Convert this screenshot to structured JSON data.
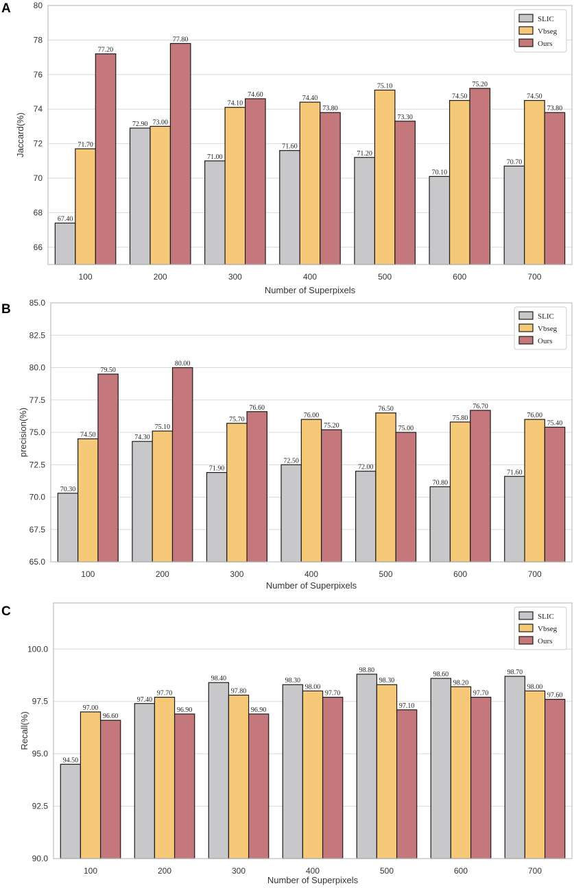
{
  "chart_data": [
    {
      "type": "bar",
      "panel": "A",
      "title": "",
      "xlabel": "Number of Superpixels",
      "ylabel": "Jaccard(%)",
      "ylim": [
        65,
        80
      ],
      "yticks": [
        66,
        68,
        70,
        72,
        74,
        76,
        78,
        80
      ],
      "ytick_labels": [
        "66",
        "68",
        "70",
        "72",
        "74",
        "76",
        "78",
        "80"
      ],
      "categories": [
        "100",
        "200",
        "300",
        "400",
        "500",
        "600",
        "700"
      ],
      "series": [
        {
          "name": "SLIC",
          "color": "#c8c8ca",
          "values": [
            67.4,
            72.9,
            71.0,
            71.6,
            71.2,
            70.1,
            70.7
          ],
          "labels": [
            "67.40",
            "72.90",
            "71.00",
            "71.60",
            "71.20",
            "70.10",
            "70.70"
          ]
        },
        {
          "name": "Vbseg",
          "color": "#f5c977",
          "values": [
            71.7,
            73.0,
            74.1,
            74.4,
            75.1,
            74.5,
            74.5
          ],
          "labels": [
            "71.70",
            "73.00",
            "74.10",
            "74.40",
            "75.10",
            "74.50",
            "74.50"
          ]
        },
        {
          "name": "Ours",
          "color": "#c5787b",
          "values": [
            77.2,
            77.8,
            74.6,
            73.8,
            73.3,
            75.2,
            73.8
          ],
          "labels": [
            "77.20",
            "77.80",
            "74.60",
            "73.80",
            "73.30",
            "75.20",
            "73.80"
          ]
        }
      ],
      "legend": "top-right",
      "grid": true
    },
    {
      "type": "bar",
      "panel": "B",
      "title": "",
      "xlabel": "Number of Superpixels",
      "ylabel": "precision(%)",
      "ylim": [
        65,
        85
      ],
      "yticks": [
        65,
        67.5,
        70,
        72.5,
        75,
        77.5,
        80,
        82.5,
        85
      ],
      "ytick_labels": [
        "65.0",
        "67.5",
        "70.0",
        "72.5",
        "75.0",
        "77.5",
        "80.0",
        "82.5",
        "85.0"
      ],
      "categories": [
        "100",
        "200",
        "300",
        "400",
        "500",
        "600",
        "700"
      ],
      "series": [
        {
          "name": "SLIC",
          "color": "#c8c8ca",
          "values": [
            70.3,
            74.3,
            71.9,
            72.5,
            72.0,
            70.8,
            71.6
          ],
          "labels": [
            "70.30",
            "74.30",
            "71.90",
            "72.50",
            "72.00",
            "70.80",
            "71.60"
          ]
        },
        {
          "name": "Vbseg",
          "color": "#f5c977",
          "values": [
            74.5,
            75.1,
            75.7,
            76.0,
            76.5,
            75.8,
            76.0
          ],
          "labels": [
            "74.50",
            "75.10",
            "75.70",
            "76.00",
            "76.50",
            "75.80",
            "76.00"
          ]
        },
        {
          "name": "Ours",
          "color": "#c5787b",
          "values": [
            79.5,
            80.0,
            76.6,
            75.2,
            75.0,
            76.7,
            75.4
          ],
          "labels": [
            "79.50",
            "80.00",
            "76.60",
            "75.20",
            "75.00",
            "76.70",
            "75.40"
          ]
        }
      ],
      "legend": "top-right",
      "grid": true
    },
    {
      "type": "bar",
      "panel": "C",
      "title": "",
      "xlabel": "Number of Superpixels",
      "ylabel": "Recall(%)",
      "ylim": [
        90,
        102.2
      ],
      "yticks": [
        90,
        92.5,
        95,
        97.5,
        100
      ],
      "ytick_labels": [
        "90.0",
        "92.5",
        "95.0",
        "97.5",
        "100.0"
      ],
      "categories": [
        "100",
        "200",
        "300",
        "400",
        "500",
        "600",
        "700"
      ],
      "series": [
        {
          "name": "SLIC",
          "color": "#c8c8ca",
          "values": [
            94.5,
            97.4,
            98.4,
            98.3,
            98.8,
            98.6,
            98.7
          ],
          "labels": [
            "94.50",
            "97.40",
            "98.40",
            "98.30",
            "98.80",
            "98.60",
            "98.70"
          ]
        },
        {
          "name": "Vbseg",
          "color": "#f5c977",
          "values": [
            97.0,
            97.7,
            97.8,
            98.0,
            98.3,
            98.2,
            98.0
          ],
          "labels": [
            "97.00",
            "97.70",
            "97.80",
            "98.00",
            "98.30",
            "98.20",
            "98.00"
          ]
        },
        {
          "name": "Ours",
          "color": "#c5787b",
          "values": [
            96.6,
            96.9,
            96.9,
            97.7,
            97.1,
            97.7,
            97.6
          ],
          "labels": [
            "96.60",
            "96.90",
            "96.90",
            "97.70",
            "97.10",
            "97.70",
            "97.60"
          ]
        }
      ],
      "legend": "top-right",
      "grid": true
    }
  ]
}
